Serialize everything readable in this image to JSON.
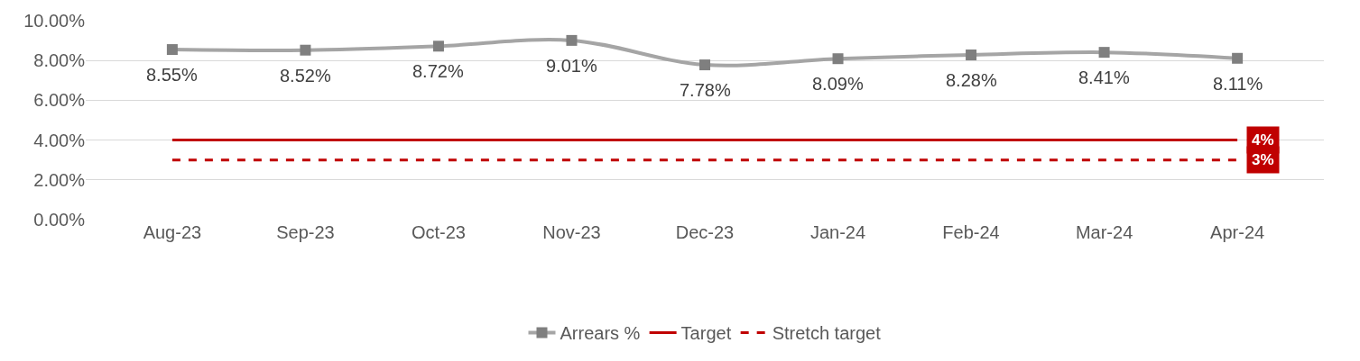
{
  "chart_data": {
    "type": "line",
    "categories": [
      "Aug-23",
      "Sep-23",
      "Oct-23",
      "Nov-23",
      "Dec-23",
      "Jan-24",
      "Feb-24",
      "Mar-24",
      "Apr-24"
    ],
    "series": [
      {
        "name": "Arrears %",
        "color": "#a5a5a5",
        "values": [
          8.55,
          8.52,
          8.72,
          9.01,
          7.78,
          8.09,
          8.28,
          8.41,
          8.11
        ],
        "marker": "square",
        "line_style": "solid",
        "value_labels": [
          "8.55%",
          "8.52%",
          "8.72%",
          "9.01%",
          "7.78%",
          "8.09%",
          "8.28%",
          "8.41%",
          "8.11%"
        ]
      },
      {
        "name": "Target",
        "color": "#c00000",
        "values": [
          4,
          4,
          4,
          4,
          4,
          4,
          4,
          4,
          4
        ],
        "marker": "none",
        "line_style": "solid",
        "value_labels": [
          null,
          null,
          null,
          null,
          null,
          null,
          null,
          null,
          "4%"
        ]
      },
      {
        "name": "Stretch target",
        "color": "#c00000",
        "values": [
          3,
          3,
          3,
          3,
          3,
          3,
          3,
          3,
          3
        ],
        "marker": "none",
        "line_style": "dashed",
        "value_labels": [
          null,
          null,
          null,
          null,
          null,
          null,
          null,
          null,
          "3%"
        ]
      }
    ],
    "ylim": [
      0,
      10
    ],
    "yticks": [
      {
        "value": 0,
        "label": "0.00%"
      },
      {
        "value": 2,
        "label": "2.00%"
      },
      {
        "value": 4,
        "label": "4.00%"
      },
      {
        "value": 6,
        "label": "6.00%"
      },
      {
        "value": 8,
        "label": "8.00%"
      },
      {
        "value": 10,
        "label": "10.00%"
      }
    ],
    "grid": "y",
    "legend": "bottom"
  }
}
